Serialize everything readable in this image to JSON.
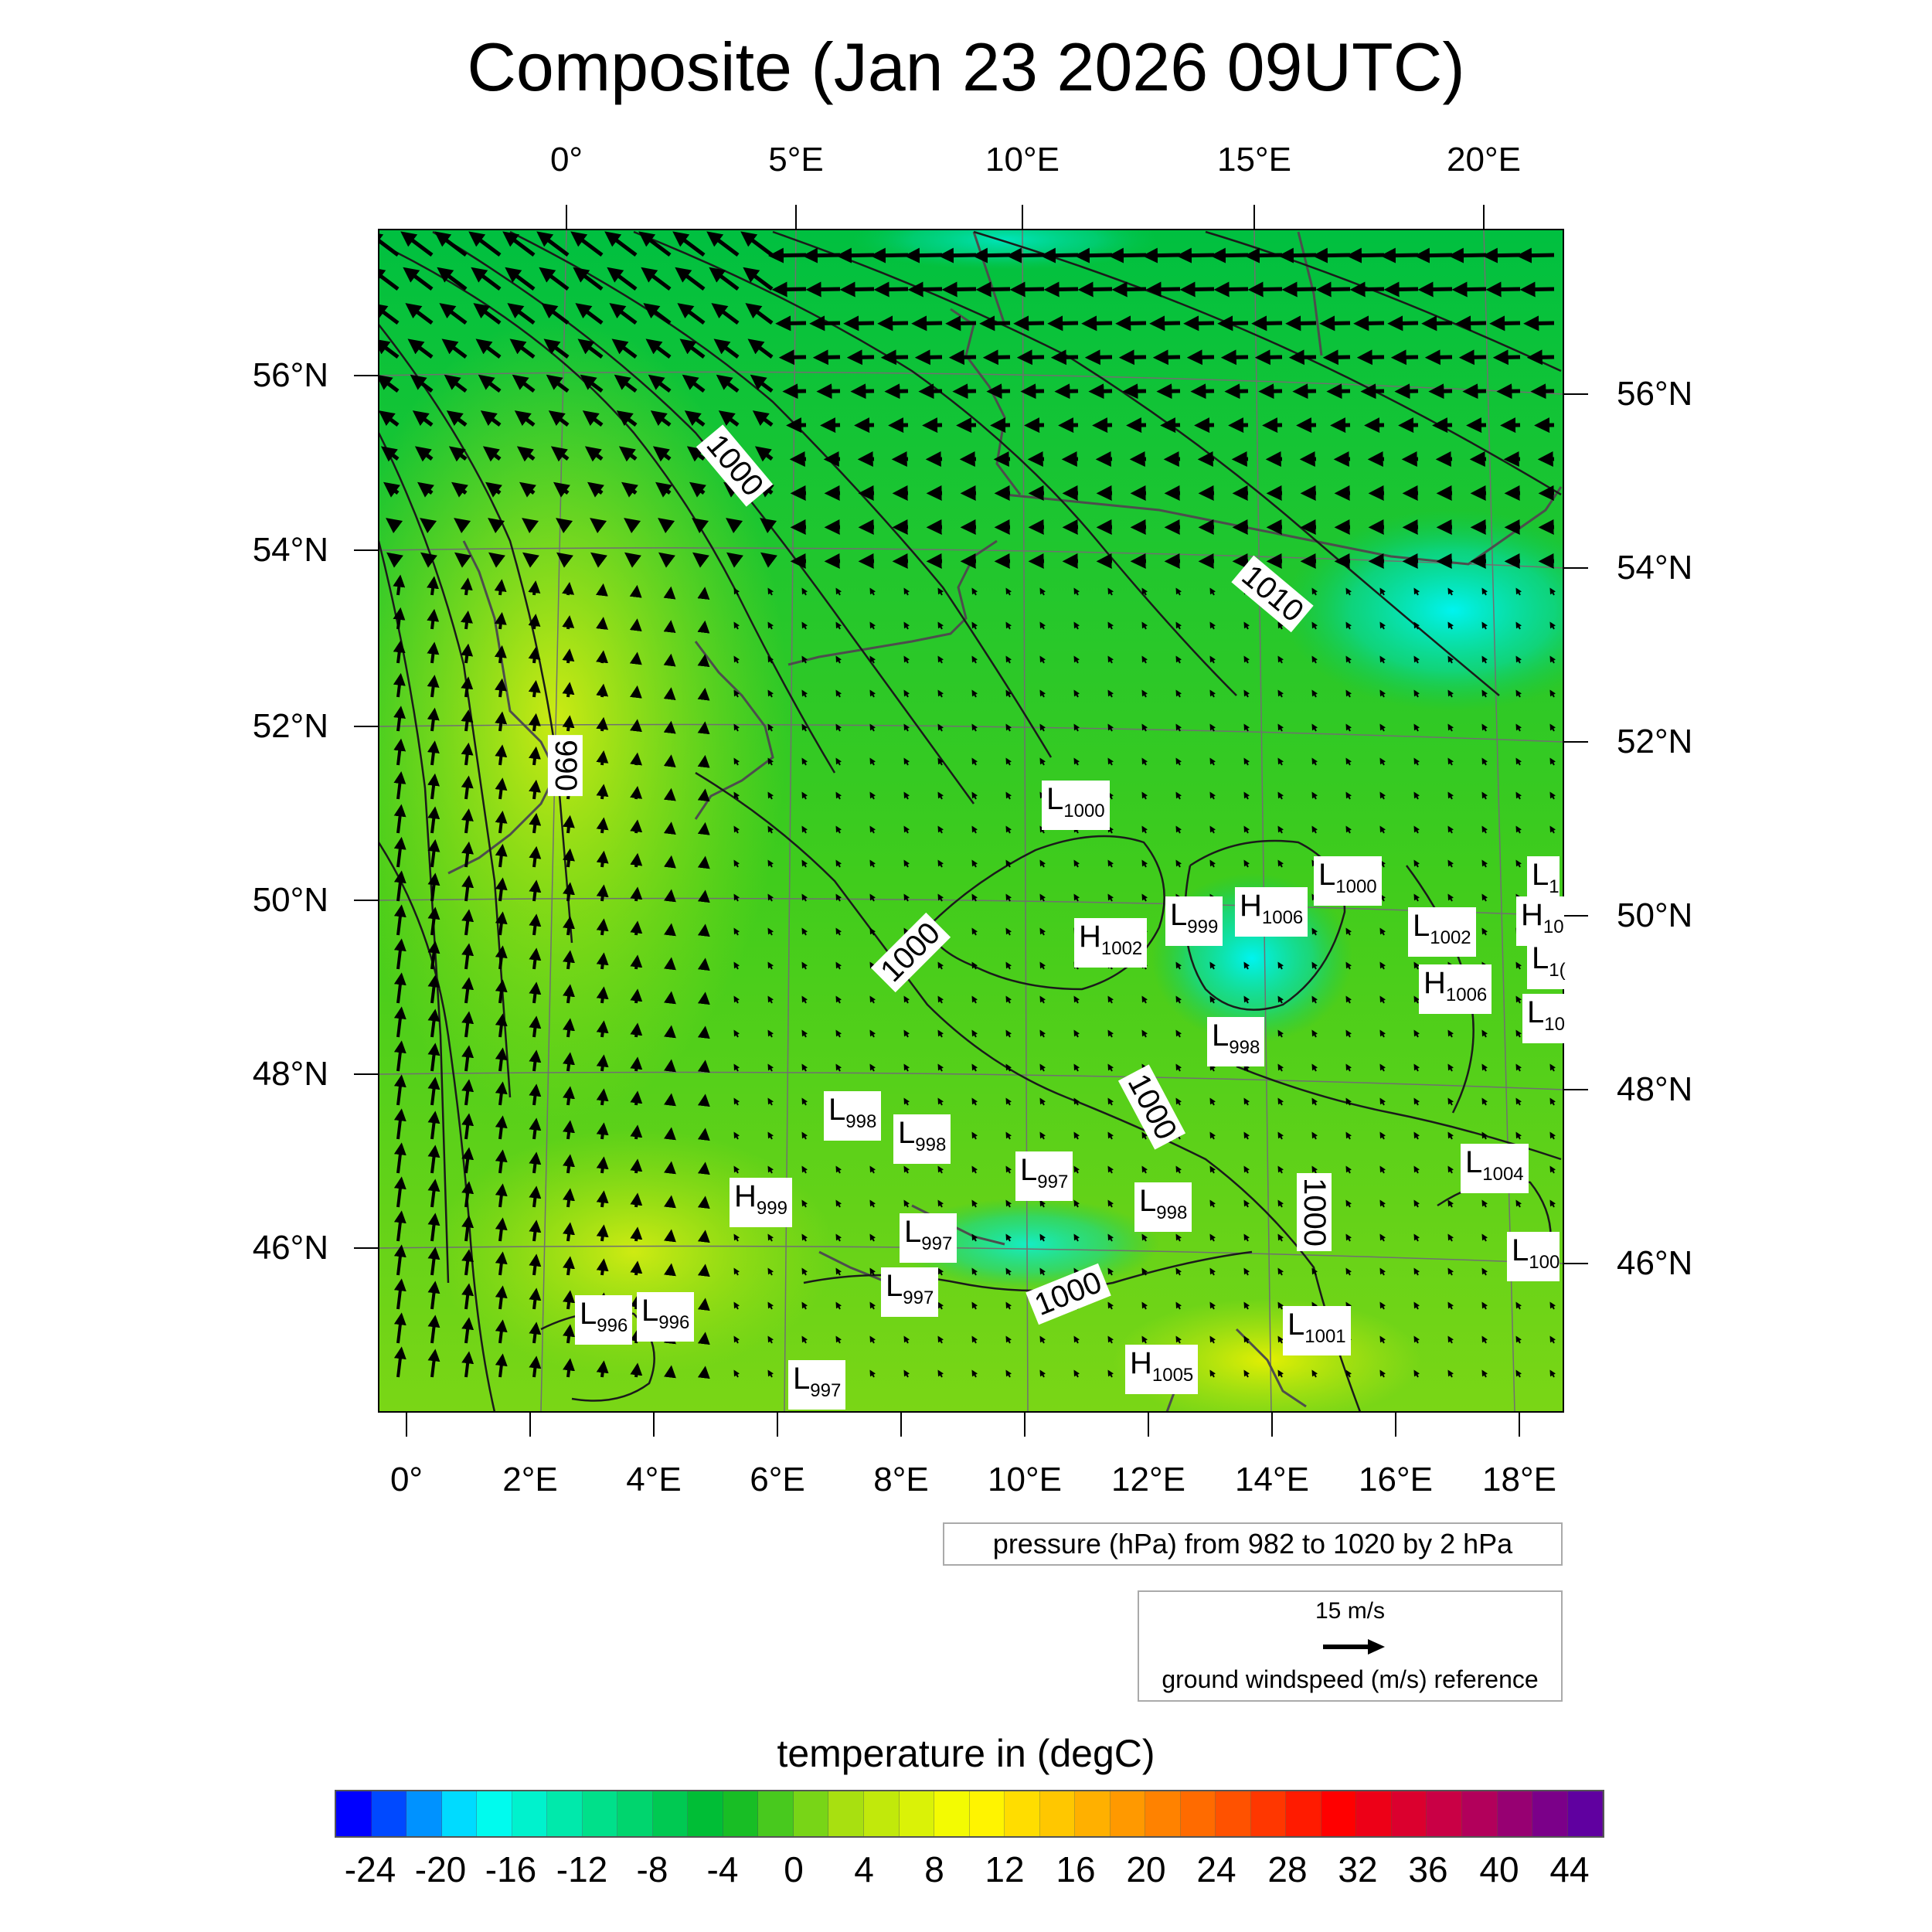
{
  "title": "Composite (Jan 23 2026 09UTC)",
  "top_longitude_labels": [
    "0°",
    "5°E",
    "10°E",
    "15°E",
    "20°E"
  ],
  "bottom_longitude_labels": [
    "0°",
    "2°E",
    "4°E",
    "6°E",
    "8°E",
    "10°E",
    "12°E",
    "14°E",
    "16°E",
    "18°E"
  ],
  "left_latitude_labels": [
    "56°N",
    "54°N",
    "52°N",
    "50°N",
    "48°N",
    "46°N"
  ],
  "right_latitude_labels": [
    "56°N",
    "54°N",
    "52°N",
    "50°N",
    "48°N",
    "46°N"
  ],
  "pressure_centers": [
    {
      "type": "L",
      "value": "1000"
    },
    {
      "type": "L",
      "value": "1000"
    },
    {
      "type": "L",
      "value": "1"
    },
    {
      "type": "H",
      "value": "1006"
    },
    {
      "type": "L",
      "value": "999"
    },
    {
      "type": "H",
      "value": "1002"
    },
    {
      "type": "L",
      "value": "1002"
    },
    {
      "type": "H",
      "value": "10"
    },
    {
      "type": "L",
      "value": "1("
    },
    {
      "type": "H",
      "value": "1006"
    },
    {
      "type": "L",
      "value": "10"
    },
    {
      "type": "L",
      "value": "998"
    },
    {
      "type": "L",
      "value": "998"
    },
    {
      "type": "L",
      "value": "998"
    },
    {
      "type": "L",
      "value": "997"
    },
    {
      "type": "L",
      "value": "998"
    },
    {
      "type": "L",
      "value": "1004"
    },
    {
      "type": "H",
      "value": "999"
    },
    {
      "type": "L",
      "value": "997"
    },
    {
      "type": "L",
      "value": "100"
    },
    {
      "type": "L",
      "value": "997"
    },
    {
      "type": "L",
      "value": "996"
    },
    {
      "type": "L",
      "value": "996"
    },
    {
      "type": "L",
      "value": "1001"
    },
    {
      "type": "H",
      "value": "1005"
    },
    {
      "type": "L",
      "value": "997"
    }
  ],
  "isobar_labels": [
    "1000",
    "1010",
    "990",
    "1000",
    "1000",
    "1000",
    "1000"
  ],
  "pressure_info": "pressure (hPa) from 982 to 1020 by 2 hPa",
  "wind_reference": {
    "speed": "15 m/s",
    "label": "ground windspeed (m/s) reference"
  },
  "colorbar": {
    "title": "temperature in (degC)",
    "tick_labels": [
      "-24",
      "-20",
      "-16",
      "-12",
      "-8",
      "-4",
      "0",
      "4",
      "8",
      "12",
      "16",
      "20",
      "24",
      "28",
      "32",
      "36",
      "40",
      "44"
    ],
    "min": -26,
    "max": 46,
    "step": 2,
    "colors": [
      "#0000ff",
      "#00ffff",
      "#00e08a",
      "#00b828",
      "#a8e010",
      "#ffff00",
      "#ffb000",
      "#ff6000",
      "#ff0000",
      "#c00050",
      "#6000a0"
    ]
  },
  "map_colors": {
    "cold": "#00f2ee",
    "cool": "#00c83a",
    "mild": "#7ad616",
    "warm": "#d8ee10",
    "arrow": "#000000",
    "coast": "#4d4d4d",
    "isobar": "#1a1a1a"
  }
}
